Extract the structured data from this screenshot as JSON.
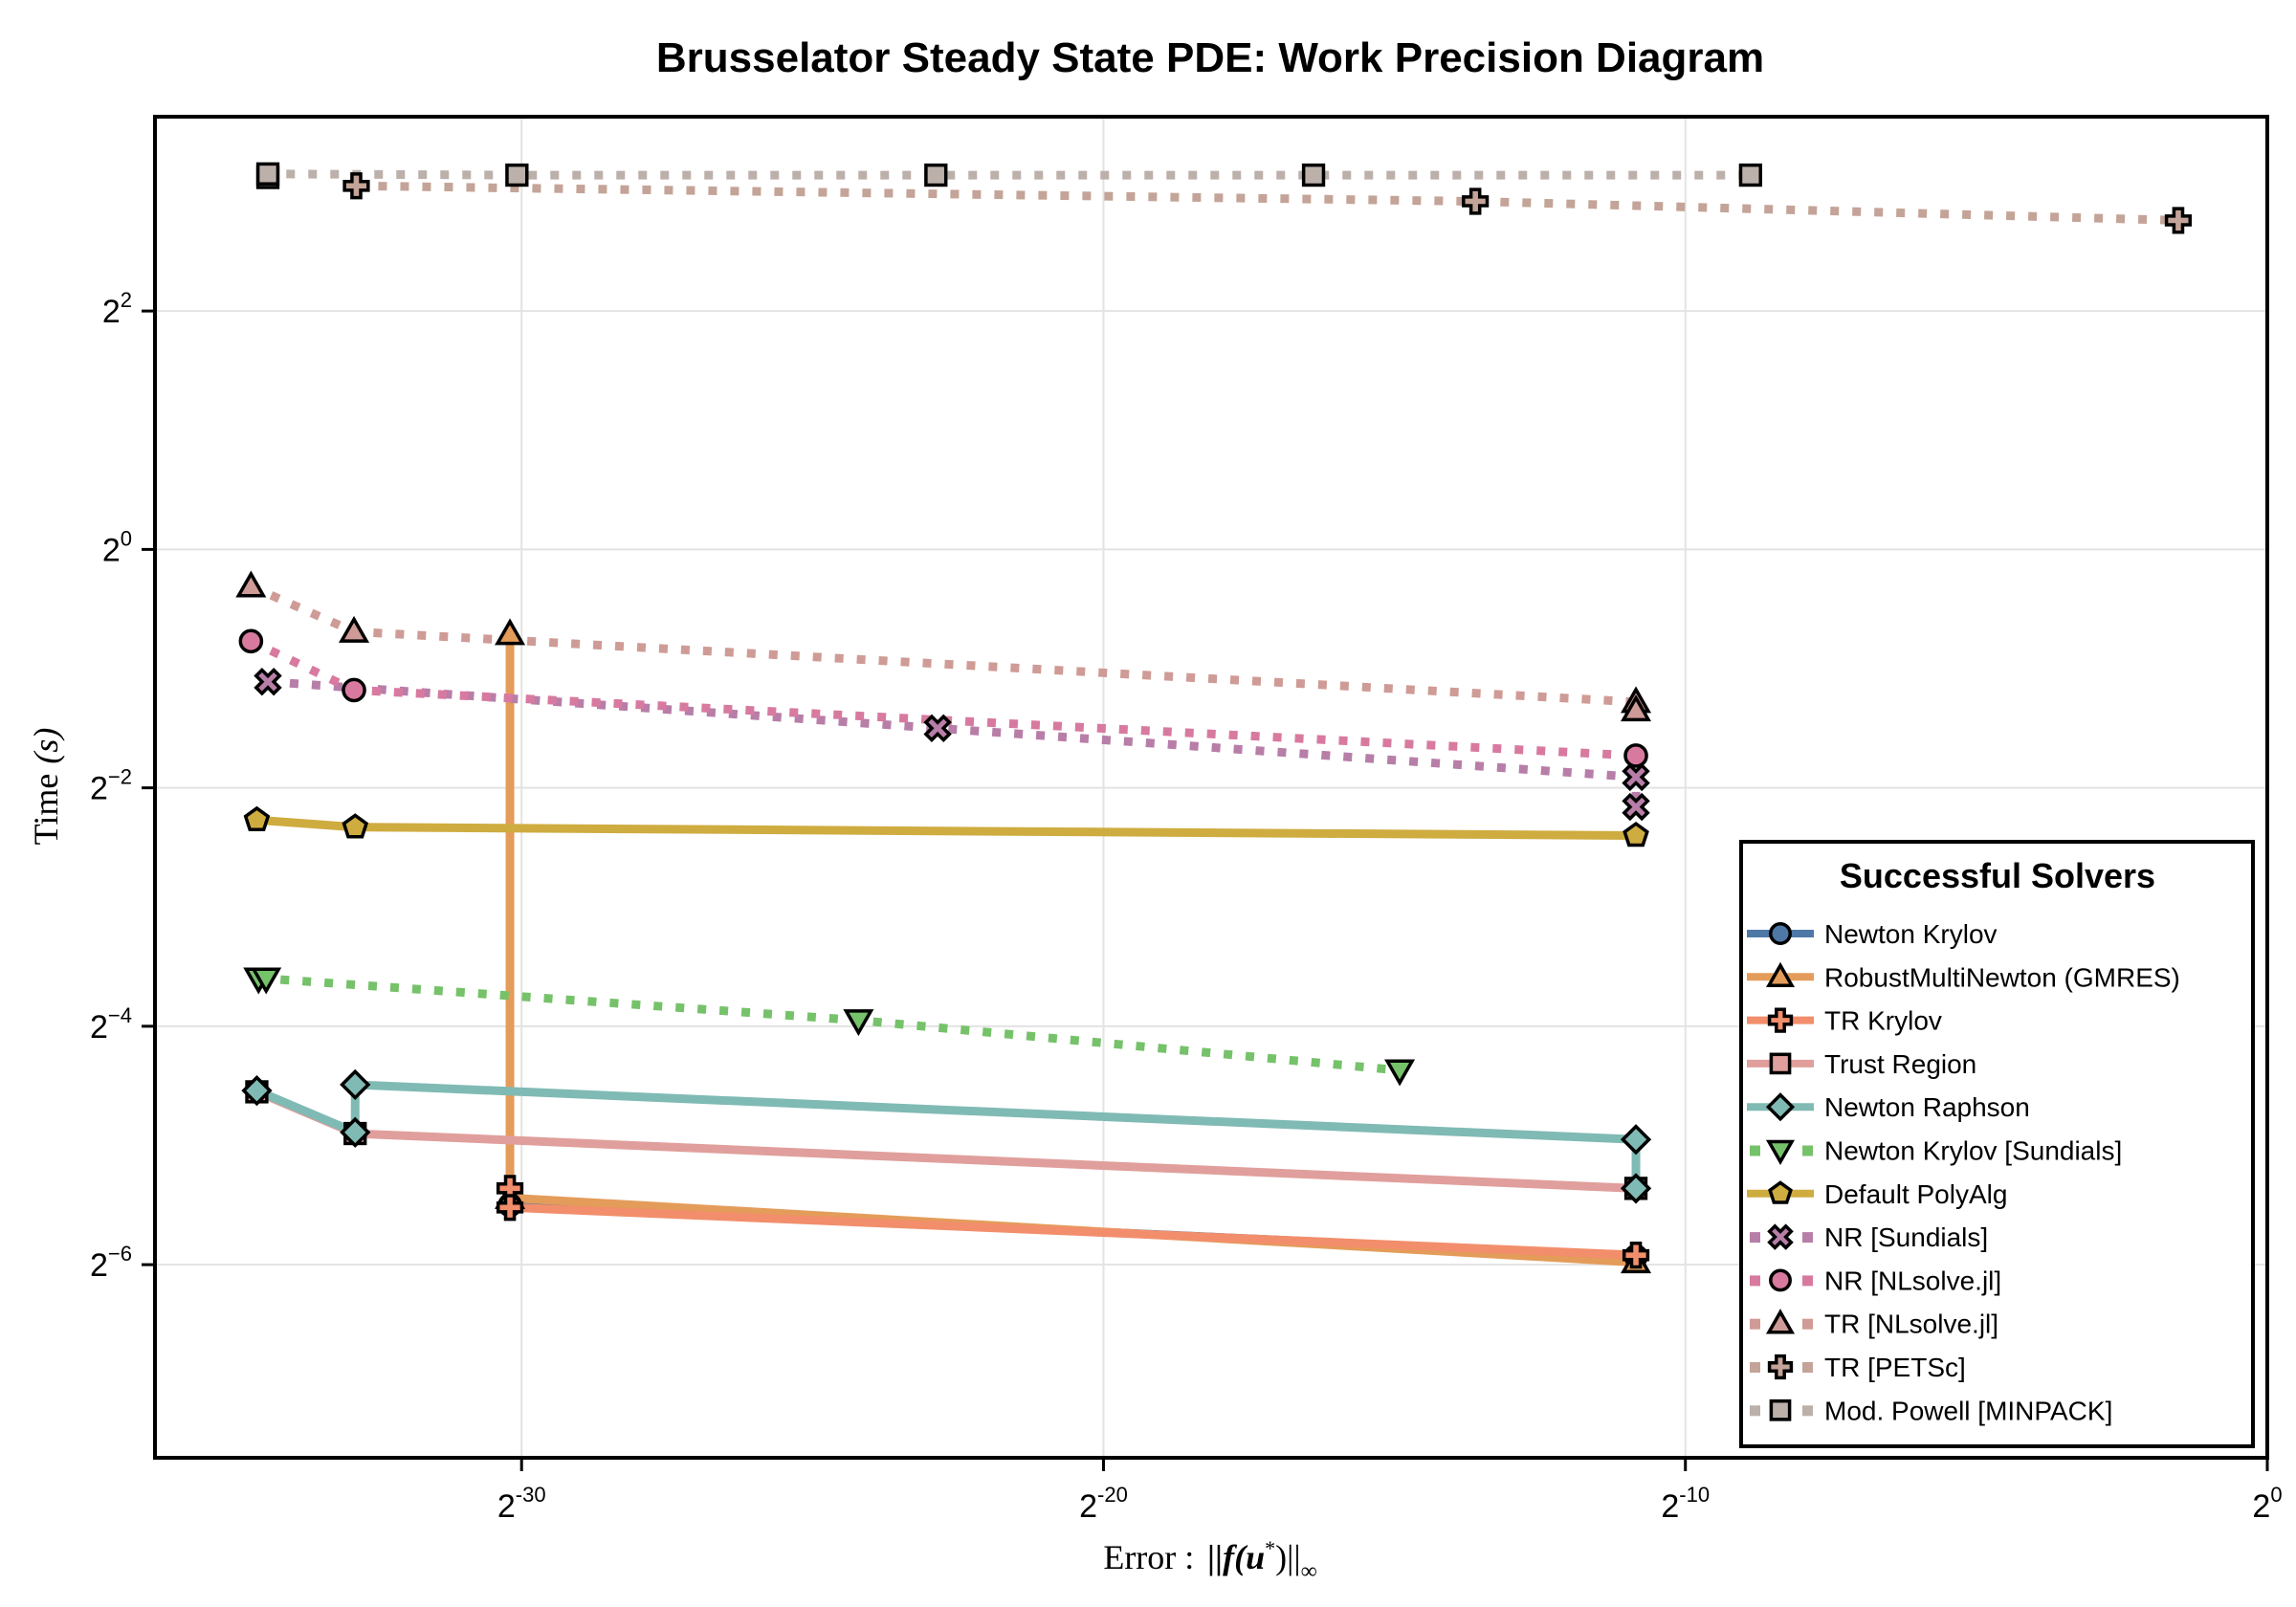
{
  "chart_data": {
    "type": "line",
    "title": "Brusselator Steady State PDE: Work Precision Diagram",
    "xlabel": "Error : ||f(u*)||∞",
    "xlabel_parts": {
      "prefix": "Error :",
      "expr": "||f(u",
      "star": "*",
      "close": ")||",
      "sub": "∞"
    },
    "ylabel": "Time (s)",
    "ylabel_parts": {
      "word": "Time",
      "unit": "(s)"
    },
    "x_scale": "log2",
    "y_scale": "log2",
    "xlim_log2": [
      -36.3,
      0
    ],
    "ylim_log2": [
      -7.62,
      3.63
    ],
    "x_ticks": [
      {
        "base": "2",
        "exp": "-30",
        "value": -30
      },
      {
        "base": "2",
        "exp": "-20",
        "value": -20
      },
      {
        "base": "2",
        "exp": "-10",
        "value": -10
      },
      {
        "base": "2",
        "exp": "0",
        "value": 0
      }
    ],
    "y_ticks": [
      {
        "base": "2",
        "exp": "2",
        "value": 2
      },
      {
        "base": "2",
        "exp": "0",
        "value": 0
      },
      {
        "base": "2",
        "exp": "−2",
        "value": -2
      },
      {
        "base": "2",
        "exp": "−4",
        "value": -4
      },
      {
        "base": "2",
        "exp": "−6",
        "value": -6
      }
    ],
    "grid": true,
    "legend": {
      "title": "Successful Solvers",
      "position": "bottom-right"
    },
    "series_note": "x and y values are log2 of error and time",
    "series": [
      {
        "name": "Newton Krylov",
        "color": "#4e79a7",
        "marker": "circle",
        "style": "solid",
        "x": [
          -30.2,
          -10.85
        ],
        "y": [
          -5.5,
          -5.93
        ]
      },
      {
        "name": "RobustMultiNewton (GMRES)",
        "color": "#e49c5a",
        "marker": "triangle-up",
        "style": "solid",
        "x": [
          -30.2,
          -30.2,
          -10.85
        ],
        "y": [
          -0.71,
          -5.44,
          -5.98
        ]
      },
      {
        "name": "TR Krylov",
        "color": "#f28e6b",
        "marker": "plus",
        "style": "solid",
        "x": [
          -30.2,
          -30.2,
          -10.85
        ],
        "y": [
          -5.36,
          -5.52,
          -5.92
        ]
      },
      {
        "name": "Trust Region",
        "color": "#e09f9c",
        "marker": "square",
        "style": "solid",
        "x": [
          -34.55,
          -32.86,
          -10.85
        ],
        "y": [
          -4.55,
          -4.9,
          -5.36
        ]
      },
      {
        "name": "Newton Raphson",
        "color": "#80bab4",
        "marker": "diamond",
        "style": "solid",
        "x": [
          -34.55,
          -32.86,
          -32.86,
          -10.85,
          -10.85
        ],
        "y": [
          -4.54,
          -4.49,
          -4.89,
          -4.95,
          -5.36
        ],
        "path_order": [
          0,
          2,
          1,
          3,
          4
        ]
      },
      {
        "name": "Newton Krylov [Sundials]",
        "color": "#76c26a",
        "marker": "triangle-down",
        "style": "dotted",
        "x": [
          -34.52,
          -34.39,
          -24.21,
          -14.91
        ],
        "y": [
          -3.6,
          -3.6,
          -3.95,
          -4.37
        ]
      },
      {
        "name": "Default PolyAlg",
        "color": "#cfac40",
        "marker": "pentagon",
        "style": "solid",
        "x": [
          -34.55,
          -32.86,
          -10.85
        ],
        "y": [
          -2.27,
          -2.33,
          -2.4
        ]
      },
      {
        "name": "NR [Sundials]",
        "color": "#b77ea8",
        "marker": "x",
        "style": "dotted",
        "x": [
          -34.36,
          -22.85,
          -10.85,
          -10.85
        ],
        "y": [
          -1.11,
          -1.5,
          -1.91,
          -2.16
        ]
      },
      {
        "name": "NR [NLsolve.jl]",
        "color": "#d87aa0",
        "marker": "circle",
        "style": "dotted",
        "x": [
          -34.65,
          -32.88,
          -10.85
        ],
        "y": [
          -0.77,
          -1.18,
          -1.73
        ]
      },
      {
        "name": "TR [NLsolve.jl]",
        "color": "#cf9b96",
        "marker": "triangle-up",
        "style": "dotted",
        "x": [
          -34.65,
          -32.88,
          -10.85,
          -10.85
        ],
        "y": [
          -0.31,
          -0.69,
          -1.28,
          -1.35
        ]
      },
      {
        "name": "TR [PETSc]",
        "color": "#c4a498",
        "marker": "plus",
        "style": "dotted",
        "x": [
          -32.84,
          -13.61,
          -1.53
        ],
        "y": [
          3.05,
          2.92,
          2.76
        ]
      },
      {
        "name": "Mod. Powell [MINPACK]",
        "color": "#bcb0ab",
        "marker": "square",
        "style": "dotted",
        "x": [
          -34.36,
          -34.36,
          -30.08,
          -22.88,
          -16.39,
          -8.88
        ],
        "y": [
          3.12,
          3.15,
          3.14,
          3.14,
          3.14,
          3.14
        ]
      }
    ]
  }
}
